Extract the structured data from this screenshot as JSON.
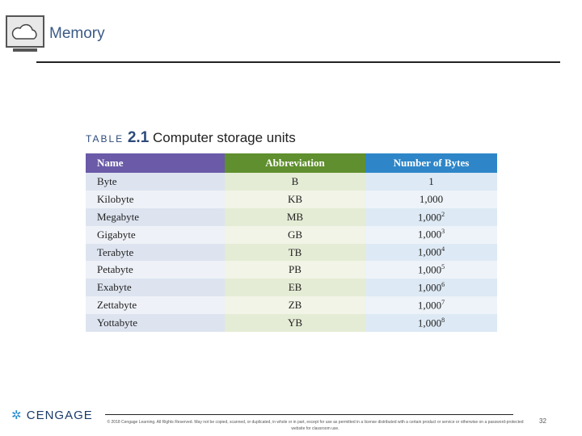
{
  "header": {
    "title": "Memory"
  },
  "table": {
    "label": "TABLE",
    "number": "2.1",
    "caption": "Computer storage units",
    "columns": [
      "Name",
      "Abbreviation",
      "Number of Bytes"
    ],
    "rows": [
      {
        "name": "Byte",
        "abbreviation": "B",
        "bytes": "1"
      },
      {
        "name": "Kilobyte",
        "abbreviation": "KB",
        "bytes": "1,000"
      },
      {
        "name": "Megabyte",
        "abbreviation": "MB",
        "bytes": "1,000",
        "exponent": "2"
      },
      {
        "name": "Gigabyte",
        "abbreviation": "GB",
        "bytes": "1,000",
        "exponent": "3"
      },
      {
        "name": "Terabyte",
        "abbreviation": "TB",
        "bytes": "1,000",
        "exponent": "4"
      },
      {
        "name": "Petabyte",
        "abbreviation": "PB",
        "bytes": "1,000",
        "exponent": "5"
      },
      {
        "name": "Exabyte",
        "abbreviation": "EB",
        "bytes": "1,000",
        "exponent": "6"
      },
      {
        "name": "Zettabyte",
        "abbreviation": "ZB",
        "bytes": "1,000",
        "exponent": "7"
      },
      {
        "name": "Yottabyte",
        "abbreviation": "YB",
        "bytes": "1,000",
        "exponent": "8"
      }
    ]
  },
  "footer": {
    "logo": "CENGAGE",
    "copyright": "© 2018 Cengage Learning. All Rights Reserved. May not be copied, scanned, or duplicated, in whole or in part, except for use as permitted in a license distributed with a certain product or service or otherwise on a password-protected website for classroom use.",
    "page": "32"
  }
}
